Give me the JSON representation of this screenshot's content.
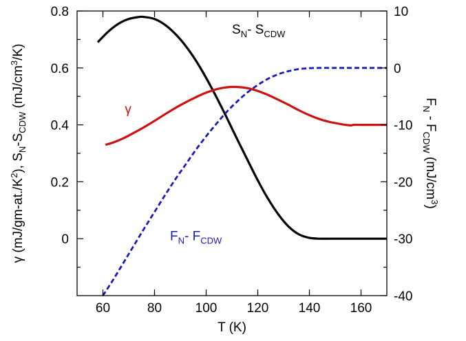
{
  "chart_data": {
    "type": "line",
    "xlabel": "T (K)",
    "ylabel_left": {
      "pre": "γ (mJ/gm-at./K",
      "sup": "2",
      "mid": "), S",
      "sub1": "N",
      "mid2": "-S",
      "sub2": "CDW",
      "post1": " (mJ/cm",
      "sup2": "3",
      "post2": "/K)"
    },
    "ylabel_right": {
      "pre": "F",
      "sub1": "N",
      "mid": " - F",
      "sub2": "CDW",
      "post1": " (mJ/cm",
      "sup": "3",
      "post2": ")"
    },
    "xlim": [
      50,
      170
    ],
    "ylim_left": [
      -0.2,
      0.8
    ],
    "ylim_right": [
      -40,
      10
    ],
    "x_ticks": [
      60,
      80,
      100,
      120,
      140,
      160
    ],
    "y_left_ticks": [
      0,
      0.2,
      0.4,
      0.6,
      0.8
    ],
    "y_left_tick_labels": [
      "0",
      "0.2",
      "0.4",
      "0.6",
      "0.8"
    ],
    "y_right_ticks": [
      -40,
      -30,
      -20,
      -10,
      0,
      10
    ],
    "y_right_tick_labels": [
      "-40",
      "-30",
      "-20",
      "-10",
      "0",
      "10"
    ],
    "series": [
      {
        "id": "entropy",
        "color": "#000000",
        "dash": "solid",
        "axis": "left",
        "label": {
          "main": "S",
          "sub1": "N",
          "mid": "- S",
          "sub2": "CDW"
        },
        "label_pos": {
          "x": 110,
          "y": 0.72
        },
        "label_color": "#000000",
        "x": [
          58,
          62,
          66,
          70,
          74,
          76,
          80,
          84,
          88,
          92,
          96,
          100,
          104,
          108,
          112,
          116,
          120,
          124,
          128,
          132,
          136,
          140,
          144,
          148,
          152,
          160,
          170
        ],
        "y": [
          0.69,
          0.727,
          0.755,
          0.772,
          0.779,
          0.779,
          0.772,
          0.752,
          0.72,
          0.678,
          0.626,
          0.565,
          0.497,
          0.425,
          0.35,
          0.277,
          0.205,
          0.14,
          0.085,
          0.042,
          0.015,
          0.003,
          0.0,
          0.0,
          0.0,
          0.0,
          0.0
        ]
      },
      {
        "id": "gamma",
        "color": "#cc1111",
        "dash": "solid",
        "axis": "left",
        "label": {
          "main": "γ"
        },
        "label_pos": {
          "x": 68.5,
          "y": 0.44
        },
        "label_color": "#cc1111",
        "x": [
          61,
          64,
          68,
          72,
          76,
          80,
          84,
          88,
          92,
          96,
          100,
          104,
          108,
          112,
          116,
          120,
          124,
          128,
          132,
          136,
          140,
          144,
          148,
          152,
          156,
          157,
          160,
          165,
          170
        ],
        "y": [
          0.33,
          0.338,
          0.353,
          0.372,
          0.392,
          0.414,
          0.437,
          0.459,
          0.479,
          0.497,
          0.513,
          0.525,
          0.532,
          0.533,
          0.529,
          0.519,
          0.505,
          0.488,
          0.47,
          0.451,
          0.434,
          0.42,
          0.41,
          0.403,
          0.398,
          0.4,
          0.4,
          0.4,
          0.4
        ]
      },
      {
        "id": "free-energy",
        "color": "#1a1ab8",
        "dash": "dashed",
        "axis": "right",
        "label": {
          "main": "F",
          "sub1": "N",
          "mid": "- F",
          "sub2": "CDW"
        },
        "label_pos": {
          "x": 86,
          "y": -30.3
        },
        "label_color": "#1a1ab8",
        "x": [
          60,
          64,
          68,
          72,
          76,
          80,
          84,
          88,
          92,
          96,
          100,
          104,
          108,
          112,
          116,
          120,
          124,
          128,
          132,
          136,
          140,
          144,
          148,
          152,
          160,
          170
        ],
        "y": [
          -40,
          -37.2,
          -34.2,
          -31.2,
          -28.2,
          -25.3,
          -22.4,
          -19.6,
          -17.0,
          -14.4,
          -12.0,
          -9.8,
          -7.7,
          -5.9,
          -4.3,
          -3.0,
          -1.9,
          -1.1,
          -0.55,
          -0.2,
          -0.05,
          0.0,
          0.0,
          0.0,
          0.0,
          0.0
        ]
      }
    ],
    "grid": false
  }
}
